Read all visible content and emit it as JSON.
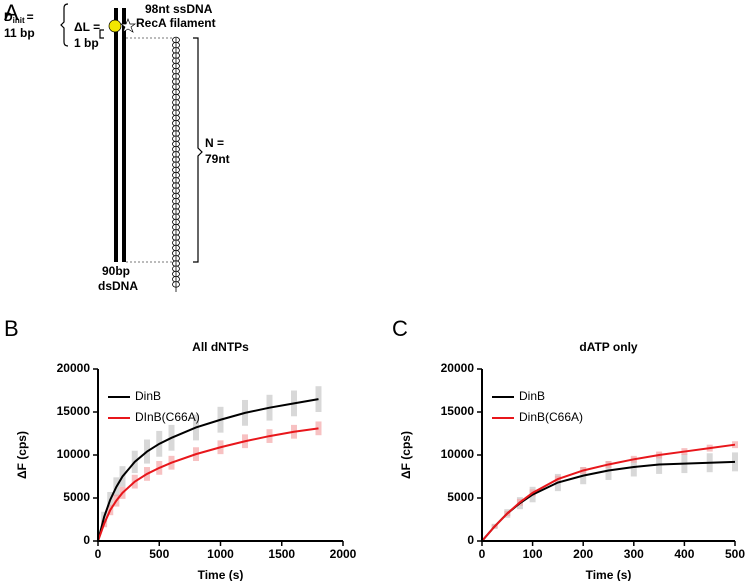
{
  "panel_labels": [
    "A",
    "B",
    "C"
  ],
  "diagram": {
    "d_init": "D",
    "d_init_sub": "init",
    "d_init_eq": "=",
    "d_init_value": "11 bp",
    "delta_l": "ΔL =",
    "delta_l_value": "1 bp",
    "ssdna": "98nt ssDNA",
    "recA": "RecA filament",
    "n_label": "N =",
    "n_value": "79nt",
    "dsdna_len": "90bp",
    "dsdna": "dsDNA"
  },
  "chart_data": [
    {
      "type": "line",
      "title": "All dNTPs",
      "x_label": "Time (s)",
      "y_label": "ΔF (cps)",
      "x": [
        0,
        50,
        100,
        150,
        200,
        300,
        400,
        500,
        600,
        800,
        1000,
        1200,
        1400,
        1600,
        1800
      ],
      "series": [
        {
          "name": "DinB",
          "color": "#000000",
          "band_color": "#c8c8c8",
          "values": [
            0,
            2800,
            4800,
            6300,
            7500,
            9200,
            10400,
            11300,
            12000,
            13200,
            14100,
            14900,
            15500,
            16000,
            16500
          ],
          "errors": [
            0,
            600,
            900,
            1100,
            1200,
            1300,
            1400,
            1500,
            1500,
            1500,
            1500,
            1500,
            1500,
            1500,
            1500
          ]
        },
        {
          "name": "DInB(C66A)",
          "color": "#e8161b",
          "band_color": "#f4a6a8",
          "values": [
            0,
            2000,
            3600,
            4700,
            5600,
            6900,
            7800,
            8500,
            9100,
            10100,
            10900,
            11600,
            12200,
            12700,
            13100
          ],
          "errors": [
            0,
            400,
            600,
            700,
            700,
            800,
            800,
            800,
            800,
            800,
            800,
            800,
            800,
            800,
            800
          ]
        }
      ],
      "xlim": [
        0,
        2000
      ],
      "xticks": [
        0,
        500,
        1000,
        1500,
        2000
      ],
      "ylim": [
        0,
        20000
      ],
      "yticks": [
        0,
        5000,
        10000,
        15000,
        20000
      ],
      "grid": false,
      "legend": "upper left"
    },
    {
      "type": "line",
      "title": "dATP only",
      "x_label": "Time (s)",
      "y_label": "ΔF (cps)",
      "x": [
        0,
        25,
        50,
        75,
        100,
        150,
        200,
        250,
        300,
        350,
        400,
        450,
        500
      ],
      "series": [
        {
          "name": "DinB",
          "color": "#000000",
          "band_color": "#c8c8c8",
          "values": [
            0,
            1700,
            3200,
            4400,
            5400,
            6800,
            7600,
            8200,
            8600,
            8900,
            9000,
            9100,
            9200
          ],
          "errors": [
            0,
            300,
            500,
            700,
            900,
            1000,
            1000,
            1100,
            1100,
            1100,
            1100,
            1100,
            1100
          ]
        },
        {
          "name": "DinB(C66A)",
          "color": "#e8161b",
          "band_color": "#f4a6a8",
          "values": [
            0,
            1700,
            3200,
            4500,
            5600,
            7200,
            8200,
            8900,
            9500,
            10000,
            10400,
            10800,
            11200
          ],
          "errors": [
            0,
            200,
            300,
            400,
            400,
            400,
            400,
            400,
            400,
            400,
            400,
            400,
            400
          ]
        }
      ],
      "xlim": [
        0,
        500
      ],
      "xticks": [
        0,
        100,
        200,
        300,
        400,
        500
      ],
      "ylim": [
        0,
        20000
      ],
      "yticks": [
        0,
        5000,
        10000,
        15000,
        20000
      ],
      "grid": false,
      "legend": "upper left"
    }
  ]
}
